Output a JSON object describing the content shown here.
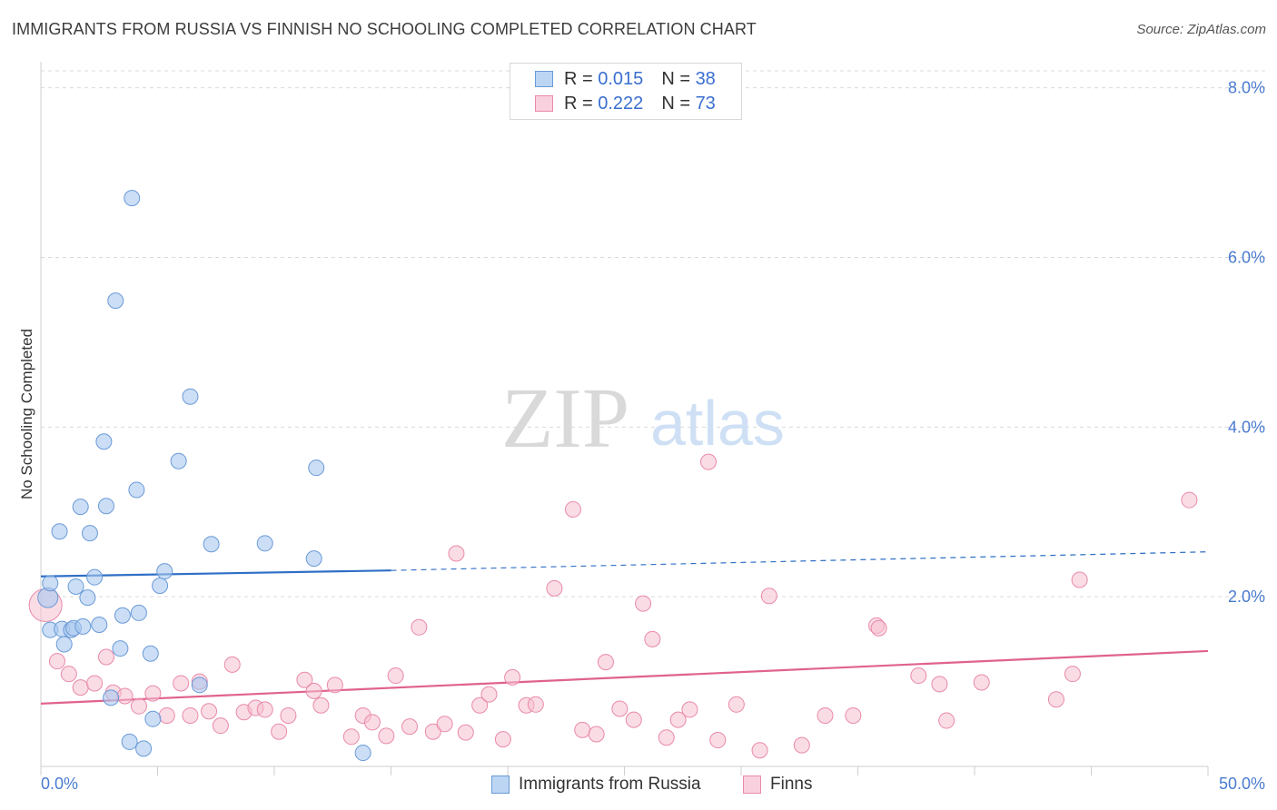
{
  "title": "IMMIGRANTS FROM RUSSIA VS FINNISH NO SCHOOLING COMPLETED CORRELATION CHART",
  "source": "Source: ZipAtlas.com",
  "legend": {
    "rows": [
      {
        "r_label": "R = ",
        "r_value": "0.015",
        "n_label": "N = ",
        "n_value": "38"
      },
      {
        "r_label": "R = ",
        "r_value": "0.222",
        "n_label": "N = ",
        "n_value": "73"
      }
    ]
  },
  "bottom_legend": [
    "Immigrants from Russia",
    "Finns"
  ],
  "watermark": {
    "zip": "ZIP",
    "atlas": "atlas"
  },
  "colors": {
    "blue_fill": "#a9c8ef",
    "blue_stroke": "#6a9ad8",
    "blue_line": "#2f6fc6",
    "pink_fill": "#f6bfd0",
    "pink_stroke": "#e98aa9",
    "pink_line": "#e0628e",
    "tick": "#4a7bd0",
    "grid": "#d9d9d9"
  },
  "chart_data": {
    "type": "scatter",
    "title": "IMMIGRANTS FROM RUSSIA VS FINNISH NO SCHOOLING COMPLETED CORRELATION CHART",
    "xlabel": "",
    "ylabel": "No Schooling Completed",
    "xlim": [
      0,
      50
    ],
    "ylim": [
      0,
      8.2
    ],
    "x_tick_labels": [
      "0.0%",
      "50.0%"
    ],
    "y_ticks": [
      2,
      4,
      6,
      8
    ],
    "y_tick_labels": [
      "2.0%",
      "4.0%",
      "6.0%",
      "8.0%"
    ],
    "grid": true,
    "legend_position": "top-center",
    "series": [
      {
        "name": "Immigrants from Russia",
        "color": "#a9c8ef",
        "r": 0.015,
        "n": 38,
        "trend": {
          "x": [
            0,
            15
          ],
          "y": [
            2.24,
            2.31
          ],
          "dashed_to_x": 50,
          "dashed_end_y": 2.53
        },
        "points": [
          [
            0.3,
            1.99
          ],
          [
            0.4,
            1.61
          ],
          [
            0.4,
            2.16
          ],
          [
            0.8,
            2.77
          ],
          [
            0.9,
            1.62
          ],
          [
            1.0,
            1.44
          ],
          [
            1.3,
            1.61
          ],
          [
            1.4,
            1.63
          ],
          [
            1.5,
            2.12
          ],
          [
            1.7,
            3.06
          ],
          [
            1.8,
            1.65
          ],
          [
            2.0,
            1.99
          ],
          [
            2.1,
            2.75
          ],
          [
            2.3,
            2.23
          ],
          [
            2.5,
            1.67
          ],
          [
            2.7,
            3.83
          ],
          [
            2.8,
            3.07
          ],
          [
            3.0,
            0.81
          ],
          [
            3.2,
            5.49
          ],
          [
            3.4,
            1.39
          ],
          [
            3.5,
            1.78
          ],
          [
            3.8,
            0.29
          ],
          [
            3.9,
            6.7
          ],
          [
            4.1,
            3.26
          ],
          [
            4.2,
            1.81
          ],
          [
            4.4,
            0.21
          ],
          [
            4.7,
            1.33
          ],
          [
            4.8,
            0.56
          ],
          [
            5.1,
            2.13
          ],
          [
            5.3,
            2.3
          ],
          [
            5.9,
            3.6
          ],
          [
            6.4,
            4.36
          ],
          [
            6.8,
            0.96
          ],
          [
            7.3,
            2.62
          ],
          [
            9.6,
            2.63
          ],
          [
            11.7,
            2.45
          ],
          [
            11.8,
            3.52
          ],
          [
            13.8,
            0.16
          ]
        ]
      },
      {
        "name": "Finns",
        "color": "#f6bfd0",
        "r": 0.222,
        "n": 73,
        "trend": {
          "x": [
            0,
            50
          ],
          "y": [
            0.74,
            1.36
          ]
        },
        "points": [
          [
            0.2,
            1.9
          ],
          [
            0.7,
            1.24
          ],
          [
            1.2,
            1.09
          ],
          [
            1.7,
            0.93
          ],
          [
            2.3,
            0.98
          ],
          [
            2.8,
            1.29
          ],
          [
            3.1,
            0.87
          ],
          [
            3.6,
            0.83
          ],
          [
            4.2,
            0.71
          ],
          [
            4.8,
            0.86
          ],
          [
            5.4,
            0.6
          ],
          [
            6.0,
            0.98
          ],
          [
            6.4,
            0.6
          ],
          [
            6.8,
            1.0
          ],
          [
            7.2,
            0.65
          ],
          [
            7.7,
            0.48
          ],
          [
            8.2,
            1.2
          ],
          [
            8.7,
            0.64
          ],
          [
            9.2,
            0.69
          ],
          [
            9.6,
            0.67
          ],
          [
            10.2,
            0.41
          ],
          [
            10.6,
            0.6
          ],
          [
            11.3,
            1.02
          ],
          [
            11.7,
            0.89
          ],
          [
            12.0,
            0.72
          ],
          [
            12.6,
            0.96
          ],
          [
            13.3,
            0.35
          ],
          [
            13.8,
            0.6
          ],
          [
            14.2,
            0.52
          ],
          [
            14.8,
            0.36
          ],
          [
            15.2,
            1.07
          ],
          [
            15.8,
            0.47
          ],
          [
            16.2,
            1.64
          ],
          [
            16.8,
            0.41
          ],
          [
            17.3,
            0.5
          ],
          [
            17.8,
            2.51
          ],
          [
            18.2,
            0.4
          ],
          [
            18.8,
            0.72
          ],
          [
            19.2,
            0.85
          ],
          [
            19.8,
            0.32
          ],
          [
            20.2,
            1.05
          ],
          [
            20.8,
            0.72
          ],
          [
            21.2,
            0.73
          ],
          [
            22.0,
            2.1
          ],
          [
            22.8,
            3.03
          ],
          [
            23.2,
            0.43
          ],
          [
            23.8,
            0.38
          ],
          [
            24.2,
            1.23
          ],
          [
            24.8,
            0.68
          ],
          [
            25.4,
            0.55
          ],
          [
            25.8,
            1.92
          ],
          [
            26.2,
            1.5
          ],
          [
            26.8,
            0.34
          ],
          [
            27.3,
            0.55
          ],
          [
            27.8,
            0.67
          ],
          [
            28.6,
            3.59
          ],
          [
            29.0,
            0.31
          ],
          [
            29.8,
            0.73
          ],
          [
            30.8,
            0.19
          ],
          [
            31.2,
            2.01
          ],
          [
            32.6,
            0.25
          ],
          [
            33.6,
            0.6
          ],
          [
            34.8,
            0.6
          ],
          [
            35.8,
            1.66
          ],
          [
            35.9,
            1.63
          ],
          [
            37.6,
            1.07
          ],
          [
            38.5,
            0.97
          ],
          [
            38.8,
            0.54
          ],
          [
            40.3,
            0.99
          ],
          [
            43.5,
            0.79
          ],
          [
            44.2,
            1.09
          ],
          [
            44.5,
            2.2
          ],
          [
            49.2,
            3.14
          ]
        ]
      }
    ]
  }
}
